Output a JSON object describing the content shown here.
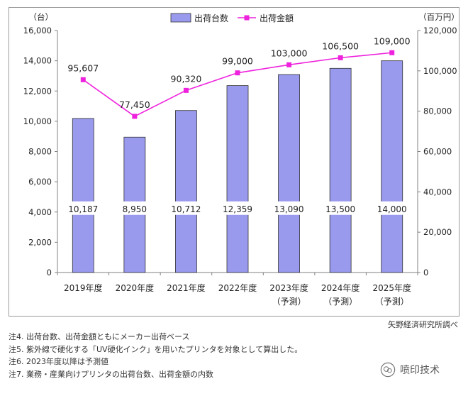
{
  "chart_data": {
    "type": "bar+line",
    "categories": [
      "2019年度",
      "2020年度",
      "2021年度",
      "2022年度",
      "2023年度",
      "2024年度",
      "2025年度"
    ],
    "category_subs": [
      "",
      "",
      "",
      "",
      "（予測）",
      "（予測）",
      "（予測）"
    ],
    "series": [
      {
        "name": "出荷台数",
        "type": "bar",
        "axis": "left",
        "values": [
          10187,
          8950,
          10712,
          12359,
          13090,
          13500,
          14000
        ],
        "labels": [
          "10,187",
          "8,950",
          "10,712",
          "12,359",
          "13,090",
          "13,500",
          "14,000"
        ]
      },
      {
        "name": "出荷金額",
        "type": "line",
        "axis": "right",
        "values": [
          95607,
          77450,
          90320,
          99000,
          103000,
          106500,
          109000
        ],
        "labels": [
          "95,607",
          "77,450",
          "90,320",
          "99,000",
          "103,000",
          "106,500",
          "109,000"
        ]
      }
    ],
    "y_left": {
      "unit": "（台）",
      "min": 0,
      "max": 16000,
      "step": 2000,
      "ticks": [
        "0",
        "2,000",
        "4,000",
        "6,000",
        "8,000",
        "10,000",
        "12,000",
        "14,000",
        "16,000"
      ]
    },
    "y_right": {
      "unit": "（百万円）",
      "min": 0,
      "max": 120000,
      "step": 20000,
      "ticks": [
        "0",
        "20,000",
        "40,000",
        "60,000",
        "80,000",
        "100,000",
        "120,000"
      ]
    },
    "legend_position": "top-center",
    "colors": {
      "bar_fill": "#9999ee",
      "bar_stroke": "#333333",
      "line": "#ee22dd",
      "marker": "#ee22dd"
    }
  },
  "source": "矢野経済研究所調べ",
  "notes": [
    "注4.  出荷台数、出荷金額ともにメーカー出荷ベース",
    "注5.  紫外線で硬化する「UV硬化インク」を用いたプリンタを対象として算出した。",
    "注6.  2023年度以降は予測値",
    "注7.  業務・産業向けプリンタの出荷台数、出荷金額の内数"
  ],
  "watermark": {
    "text": "喷印技术",
    "icon": "wechat-icon"
  }
}
